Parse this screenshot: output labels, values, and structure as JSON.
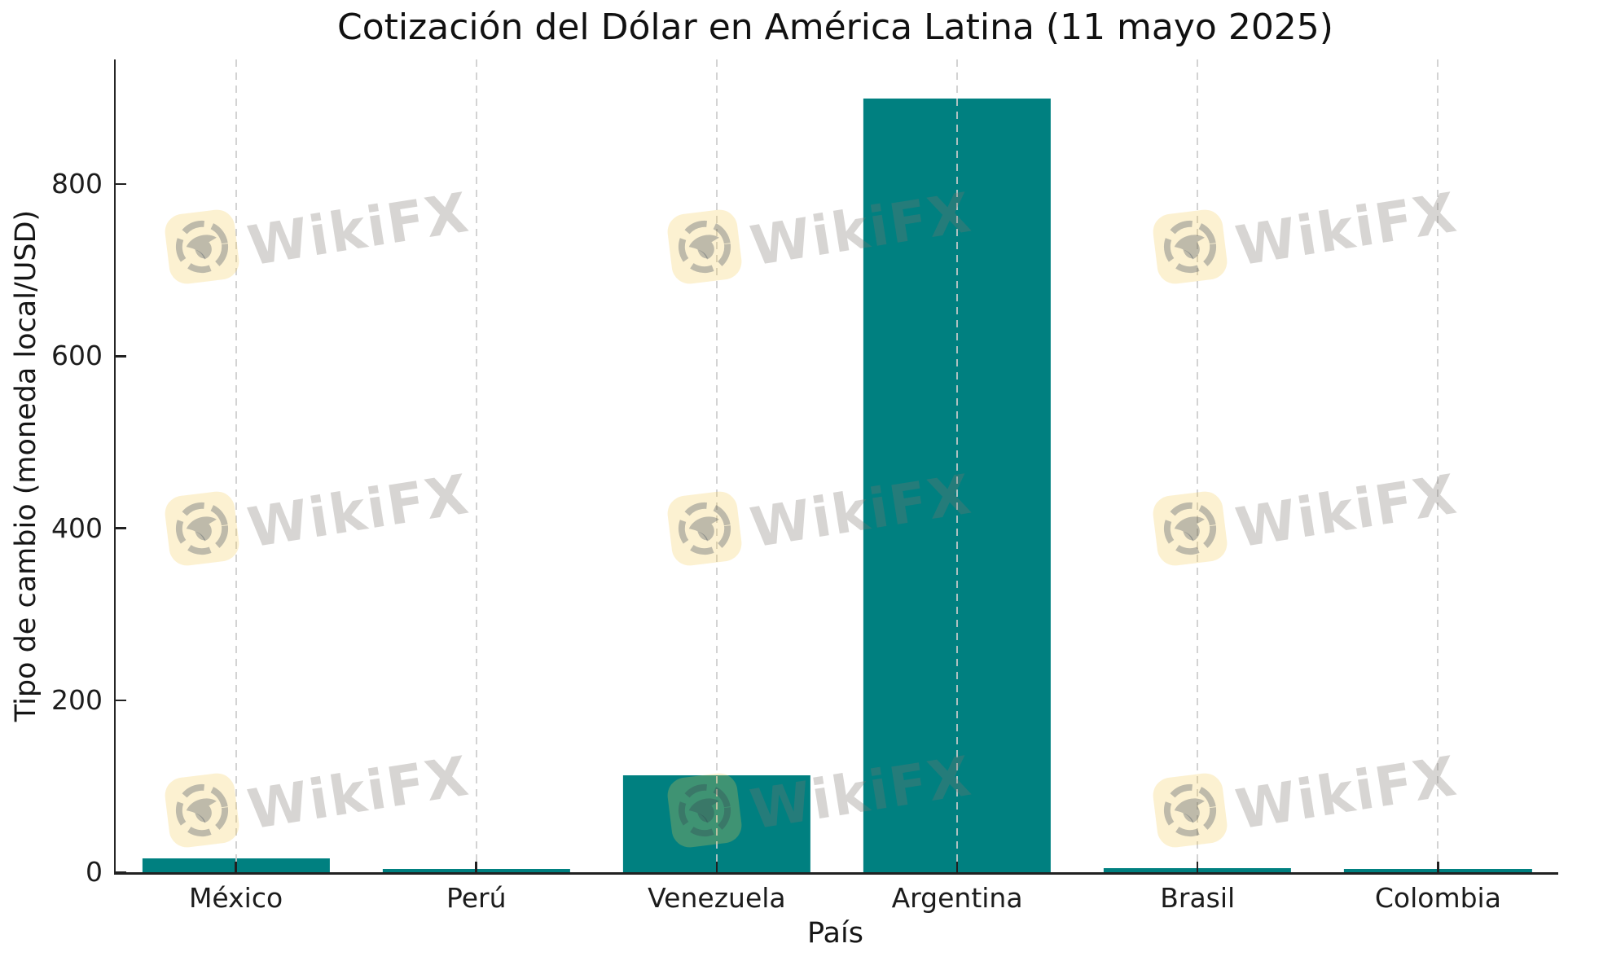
{
  "chart_data": {
    "type": "bar",
    "title": "Cotización del Dólar en América Latina (11 mayo 2025)",
    "xlabel": "País",
    "ylabel": "Tipo de cambio (moneda local/USD)",
    "categories": [
      "México",
      "Perú",
      "Venezuela",
      "Argentina",
      "Brasil",
      "Colombia"
    ],
    "values": [
      16.5,
      3.7,
      113,
      900,
      4.8,
      3.9
    ],
    "ylim": [
      0,
      945
    ],
    "yticks": [
      0,
      200,
      400,
      600,
      800
    ],
    "bar_color": "#008080",
    "grid": {
      "axis": "x",
      "style": "dashed",
      "color": "#cbcbcb"
    },
    "legend_position": "none"
  },
  "watermark": {
    "text": "WikiFX",
    "logo_icon": "wikifx-eagle-logo",
    "badge_color": "#f2c94c",
    "pattern": "3x3-grid"
  }
}
